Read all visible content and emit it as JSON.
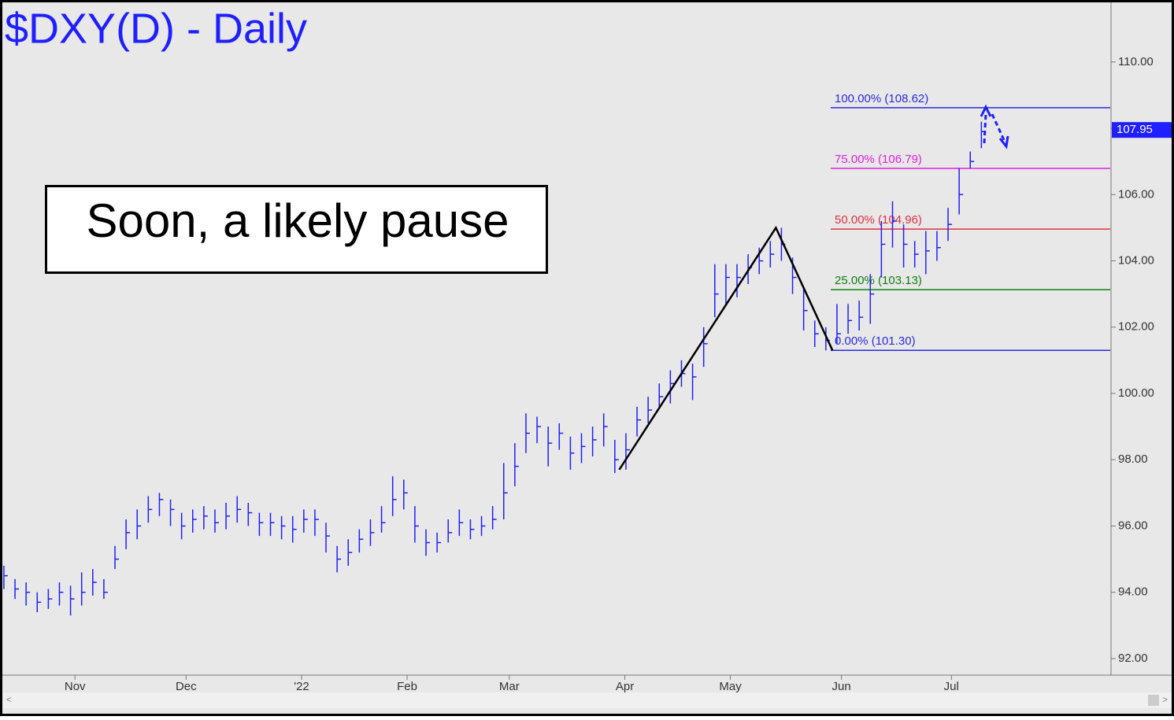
{
  "chart_data": {
    "type": "ohlc",
    "title": "$DXY(D) - Daily",
    "annotation": "Soon, a likely pause",
    "color": "#1f1fff",
    "ylim": [
      91.5,
      111.8
    ],
    "yticks": [
      {
        "value": 92,
        "label": "92.00"
      },
      {
        "value": 94,
        "label": "94.00"
      },
      {
        "value": 96,
        "label": "96.00"
      },
      {
        "value": 98,
        "label": "98.00"
      },
      {
        "value": 100,
        "label": "100.00"
      },
      {
        "value": 102,
        "label": "102.00"
      },
      {
        "value": 104,
        "label": "104.00"
      },
      {
        "value": 106,
        "label": "106.00"
      },
      {
        "value": 108,
        "label": "108.00"
      },
      {
        "value": 110,
        "label": "110.00"
      }
    ],
    "xlim": [
      -0.35,
      99.6
    ],
    "xticks": [
      {
        "value": 6.4,
        "label": "Nov"
      },
      {
        "value": 16.4,
        "label": "Dec"
      },
      {
        "value": 26.8,
        "label": "'22"
      },
      {
        "value": 36.3,
        "label": "Feb"
      },
      {
        "value": 45.5,
        "label": "Mar"
      },
      {
        "value": 55.9,
        "label": "Apr"
      },
      {
        "value": 65.4,
        "label": "May"
      },
      {
        "value": 75.4,
        "label": "Jun"
      },
      {
        "value": 85.3,
        "label": "Jul"
      }
    ],
    "high": [
      94.8,
      94.4,
      94.3,
      94.0,
      94.1,
      94.3,
      94.2,
      94.6,
      94.7,
      94.4,
      95.4,
      96.2,
      96.5,
      96.9,
      97.0,
      96.8,
      96.4,
      96.5,
      96.6,
      96.5,
      96.7,
      96.9,
      96.7,
      96.4,
      96.4,
      96.3,
      96.3,
      96.5,
      96.5,
      96.1,
      95.4,
      95.6,
      95.9,
      96.2,
      96.6,
      97.5,
      97.4,
      96.6,
      95.9,
      95.8,
      96.2,
      96.5,
      96.2,
      96.3,
      96.6,
      97.9,
      98.5,
      99.4,
      99.3,
      99.0,
      99.1,
      98.7,
      98.8,
      99.0,
      99.4,
      98.6,
      98.8,
      99.6,
      99.9,
      100.3,
      100.7,
      101.0,
      100.9,
      102.0,
      103.9,
      103.9,
      103.9,
      104.2,
      104.4,
      104.6,
      105.0,
      104.1,
      103.2,
      102.2,
      102.0,
      102.7,
      102.7,
      102.8,
      103.6,
      105.2,
      105.8,
      105.1,
      104.6,
      104.9,
      104.9,
      105.6,
      106.8,
      107.3,
      108.2
    ],
    "low": [
      94.1,
      93.8,
      93.6,
      93.4,
      93.5,
      93.6,
      93.3,
      93.6,
      93.9,
      93.8,
      94.7,
      95.3,
      95.6,
      96.1,
      96.3,
      96.0,
      95.6,
      95.8,
      95.9,
      95.8,
      95.9,
      96.1,
      96.0,
      95.7,
      95.7,
      95.6,
      95.5,
      95.8,
      95.7,
      95.2,
      94.6,
      94.8,
      95.2,
      95.4,
      95.8,
      96.3,
      96.5,
      95.5,
      95.1,
      95.2,
      95.5,
      95.7,
      95.6,
      95.7,
      95.9,
      96.2,
      97.2,
      98.2,
      98.5,
      97.8,
      98.3,
      97.7,
      97.9,
      98.1,
      98.4,
      97.6,
      97.7,
      98.7,
      99.1,
      99.6,
      99.7,
      100.2,
      99.8,
      100.8,
      102.3,
      102.7,
      102.9,
      103.3,
      103.6,
      103.8,
      104.0,
      103.0,
      101.9,
      101.4,
      101.3,
      101.5,
      101.8,
      101.9,
      102.1,
      103.5,
      104.4,
      103.8,
      103.8,
      103.6,
      104.0,
      104.6,
      105.4,
      106.8,
      107.4
    ],
    "close": [
      94.5,
      94.1,
      94.0,
      93.7,
      93.8,
      94.0,
      93.8,
      94.0,
      94.3,
      94.0,
      95.0,
      95.8,
      96.0,
      96.5,
      96.8,
      96.5,
      96.0,
      96.2,
      96.3,
      96.1,
      96.3,
      96.5,
      96.4,
      96.1,
      96.1,
      96.0,
      95.9,
      96.2,
      96.2,
      95.7,
      95.0,
      95.2,
      95.6,
      95.8,
      96.1,
      96.8,
      97.0,
      96.0,
      95.5,
      95.5,
      95.8,
      96.1,
      95.9,
      96.0,
      96.2,
      97.0,
      97.8,
      98.8,
      99.0,
      98.5,
      98.8,
      98.2,
      98.4,
      98.6,
      99.0,
      98.0,
      98.3,
      99.2,
      99.5,
      99.9,
      100.3,
      100.6,
      100.5,
      101.5,
      103.0,
      103.5,
      103.5,
      103.8,
      104.0,
      104.2,
      104.5,
      103.5,
      102.5,
      101.8,
      101.6,
      101.8,
      102.2,
      102.3,
      103.0,
      104.5,
      105.2,
      104.5,
      104.2,
      104.3,
      104.4,
      105.1,
      106.0,
      107.0,
      107.9
    ],
    "last_price": 107.95,
    "trendline": {
      "x": [
        55.4,
        69.5,
        74.6
      ],
      "y": [
        97.7,
        105.0,
        101.3
      ]
    },
    "fib_levels": [
      {
        "label": "100.00% (108.62)",
        "value": 108.62,
        "color": "#2a2ae0"
      },
      {
        "label": "75.00% (106.79)",
        "value": 106.79,
        "color": "#e020e0"
      },
      {
        "label": "50.00% (104.96)",
        "value": 104.96,
        "color": "#e03040"
      },
      {
        "label": "25.00% (103.13)",
        "value": 103.13,
        "color": "#108010"
      },
      {
        "label": "0.00% (101.30)",
        "value": 101.3,
        "color": "#2a2ae0"
      }
    ]
  }
}
